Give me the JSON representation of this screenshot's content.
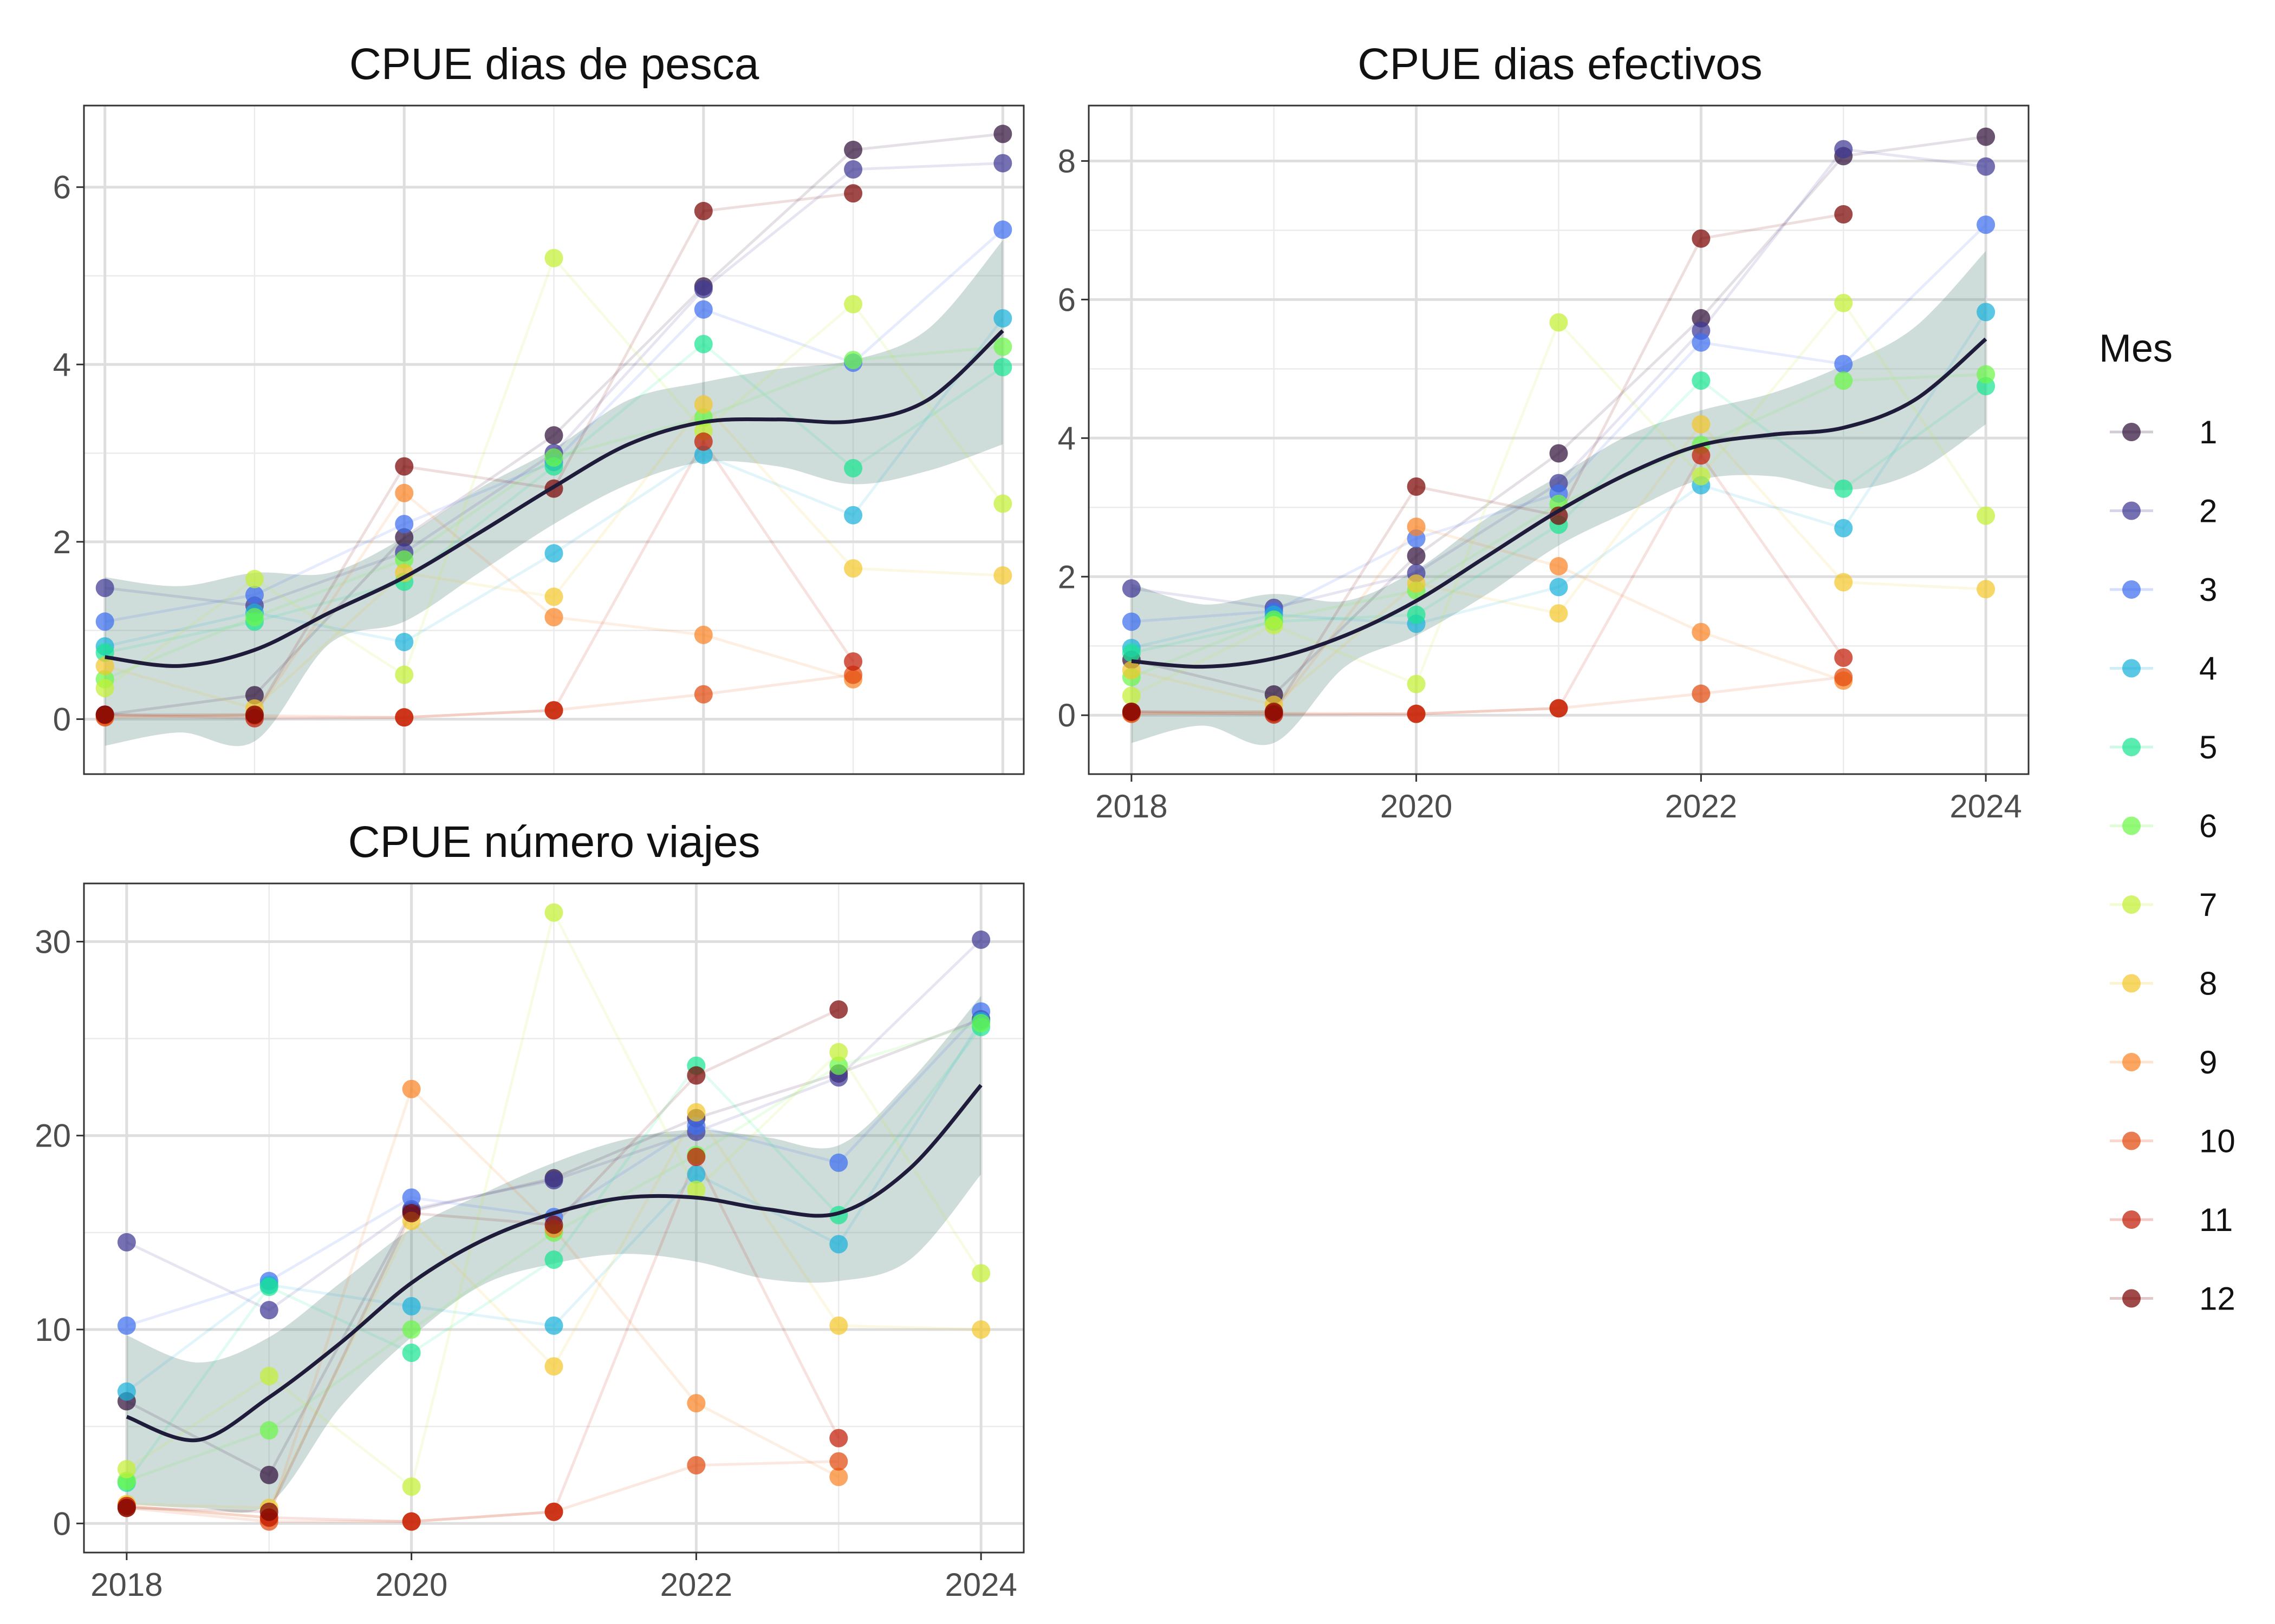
{
  "palette": [
    "#30123B",
    "#3E3994",
    "#3E6FF0",
    "#1AB1D9",
    "#1BE592",
    "#6CF74A",
    "#C3F034",
    "#F2C82D",
    "#F98325",
    "#E24A0E",
    "#C21C05",
    "#7A0403"
  ],
  "smooth_color": "#1F1B3A",
  "ribbon_color": "#5E8C86",
  "legend": {
    "title": "Mes",
    "items": [
      "1",
      "2",
      "3",
      "4",
      "5",
      "6",
      "7",
      "8",
      "9",
      "10",
      "11",
      "12"
    ]
  },
  "chart_data": [
    {
      "type": "scatter",
      "title": "CPUE dias de pesca",
      "x_ticks": [],
      "xlim": [
        2017.86,
        2024.14
      ],
      "ylim": [
        -0.62,
        6.92
      ],
      "y_ticks": [
        0,
        2,
        4,
        6
      ],
      "smooth": {
        "x": [
          2018,
          2018.5,
          2019,
          2019.5,
          2020,
          2020.5,
          2021,
          2021.5,
          2022,
          2022.5,
          2023,
          2023.5,
          2024
        ],
        "y": [
          0.7,
          0.6,
          0.78,
          1.2,
          1.6,
          2.1,
          2.62,
          3.1,
          3.35,
          3.38,
          3.36,
          3.6,
          4.38
        ],
        "lower": [
          -0.3,
          -0.15,
          -0.25,
          0.85,
          1.1,
          1.65,
          2.2,
          2.65,
          2.9,
          2.85,
          2.65,
          2.8,
          3.1
        ],
        "upper": [
          1.6,
          1.5,
          1.65,
          1.65,
          2.05,
          2.6,
          3.05,
          3.6,
          3.8,
          3.95,
          4.05,
          4.4,
          5.4
        ]
      },
      "series": [
        {
          "name": "1",
          "values": [
            0.05,
            0.27,
            2.05,
            3.2,
            4.88,
            6.42,
            6.6
          ]
        },
        {
          "name": "2",
          "values": [
            1.48,
            1.28,
            1.88,
            3.0,
            4.85,
            6.2,
            6.27
          ]
        },
        {
          "name": "3",
          "values": [
            1.1,
            1.4,
            2.2,
            2.9,
            4.62,
            4.02,
            5.52
          ]
        },
        {
          "name": "4",
          "values": [
            0.82,
            1.2,
            0.87,
            1.87,
            2.98,
            2.3,
            4.52
          ]
        },
        {
          "name": "5",
          "values": [
            0.75,
            1.1,
            1.55,
            2.85,
            4.23,
            2.83,
            3.97
          ]
        },
        {
          "name": "6",
          "values": [
            0.45,
            1.15,
            1.8,
            2.95,
            3.4,
            4.05,
            4.2
          ]
        },
        {
          "name": "7",
          "values": [
            0.35,
            1.58,
            0.5,
            5.2,
            3.25,
            4.68,
            2.43
          ]
        },
        {
          "name": "8",
          "values": [
            0.6,
            0.12,
            1.65,
            1.38,
            3.55,
            1.7,
            1.62
          ]
        },
        {
          "name": "9",
          "values": [
            0.03,
            0.05,
            2.55,
            1.15,
            0.95,
            0.45,
            null
          ]
        },
        {
          "name": "10",
          "values": [
            0.02,
            0.04,
            0.02,
            0.1,
            0.28,
            0.5,
            null
          ]
        },
        {
          "name": "11",
          "values": [
            0.05,
            0.01,
            0.02,
            0.1,
            3.13,
            0.65,
            null
          ]
        },
        {
          "name": "12",
          "values": [
            0.05,
            0.05,
            2.85,
            2.6,
            5.73,
            5.93,
            null
          ]
        }
      ]
    },
    {
      "type": "scatter",
      "title": "CPUE dias efectivos",
      "x_ticks": [
        "2018",
        "2020",
        "2022",
        "2024"
      ],
      "xlim": [
        2017.7,
        2024.3
      ],
      "ylim": [
        -0.85,
        8.8
      ],
      "y_ticks": [
        0,
        2,
        4,
        6,
        8
      ],
      "smooth": {
        "x": [
          2018,
          2018.5,
          2019,
          2019.5,
          2020,
          2020.5,
          2021,
          2021.5,
          2022,
          2022.5,
          2023,
          2023.5,
          2024
        ],
        "y": [
          0.78,
          0.7,
          0.82,
          1.15,
          1.65,
          2.3,
          2.95,
          3.5,
          3.9,
          4.05,
          4.15,
          4.55,
          5.43
        ],
        "lower": [
          -0.4,
          -0.15,
          -0.4,
          0.7,
          1.15,
          1.75,
          2.45,
          2.95,
          3.4,
          3.45,
          3.25,
          3.5,
          4.2
        ],
        "upper": [
          1.9,
          1.6,
          1.75,
          1.65,
          2.1,
          2.85,
          3.45,
          4.05,
          4.4,
          4.65,
          5.05,
          5.6,
          6.7
        ]
      },
      "series": [
        {
          "name": "1",
          "values": [
            0.8,
            0.3,
            2.3,
            3.78,
            5.73,
            8.07,
            8.35
          ]
        },
        {
          "name": "2",
          "values": [
            1.83,
            1.55,
            2.05,
            3.35,
            5.55,
            8.17,
            7.92
          ]
        },
        {
          "name": "3",
          "values": [
            1.35,
            1.5,
            2.55,
            3.2,
            5.38,
            5.07,
            7.08
          ]
        },
        {
          "name": "4",
          "values": [
            0.97,
            1.45,
            1.32,
            1.85,
            3.32,
            2.7,
            5.82
          ]
        },
        {
          "name": "5",
          "values": [
            0.9,
            1.35,
            1.45,
            2.75,
            4.83,
            3.27,
            4.75
          ]
        },
        {
          "name": "6",
          "values": [
            0.55,
            1.38,
            1.8,
            3.05,
            3.9,
            4.83,
            4.92
          ]
        },
        {
          "name": "7",
          "values": [
            0.28,
            1.3,
            0.45,
            5.67,
            3.45,
            5.95,
            2.88
          ]
        },
        {
          "name": "8",
          "values": [
            0.65,
            0.15,
            1.9,
            1.47,
            4.2,
            1.92,
            1.82
          ]
        },
        {
          "name": "9",
          "values": [
            0.03,
            0.05,
            2.72,
            2.15,
            1.2,
            0.5,
            null
          ]
        },
        {
          "name": "10",
          "values": [
            0.02,
            0.03,
            0.02,
            0.1,
            0.31,
            0.55,
            null
          ]
        },
        {
          "name": "11",
          "values": [
            0.05,
            0.01,
            0.02,
            0.1,
            3.75,
            0.83,
            null
          ]
        },
        {
          "name": "12",
          "values": [
            0.05,
            0.05,
            3.3,
            2.88,
            6.88,
            7.23,
            null
          ]
        }
      ]
    },
    {
      "type": "scatter",
      "title": "CPUE número viajes",
      "x_ticks": [
        "2018",
        "2020",
        "2022",
        "2024"
      ],
      "xlim": [
        2017.7,
        2024.3
      ],
      "ylim": [
        -1.5,
        33.0
      ],
      "y_ticks": [
        0,
        10,
        20,
        30
      ],
      "smooth": {
        "x": [
          2018,
          2018.5,
          2019,
          2019.5,
          2020,
          2020.5,
          2021,
          2021.5,
          2022,
          2022.5,
          2023,
          2023.5,
          2024
        ],
        "y": [
          5.5,
          4.3,
          6.5,
          9.3,
          12.4,
          14.6,
          16.0,
          16.8,
          16.8,
          16.2,
          16.0,
          18.3,
          22.6
        ],
        "lower": [
          1.0,
          0.8,
          1.0,
          6.0,
          9.6,
          12.3,
          13.4,
          13.9,
          13.5,
          12.6,
          12.5,
          13.6,
          18.0
        ],
        "upper": [
          9.7,
          8.3,
          9.6,
          12.4,
          15.2,
          17.0,
          18.6,
          19.8,
          20.3,
          19.9,
          19.5,
          22.8,
          27.2
        ]
      },
      "series": [
        {
          "name": "1",
          "values": [
            6.3,
            2.5,
            16.1,
            17.8,
            20.9,
            23.2,
            26.0
          ]
        },
        {
          "name": "2",
          "values": [
            14.5,
            11.0,
            16.2,
            17.7,
            20.2,
            23.0,
            30.1
          ]
        },
        {
          "name": "3",
          "values": [
            10.2,
            12.5,
            16.8,
            15.8,
            20.5,
            18.6,
            26.4
          ]
        },
        {
          "name": "4",
          "values": [
            6.8,
            12.3,
            11.2,
            10.2,
            18.0,
            14.4,
            25.9
          ]
        },
        {
          "name": "5",
          "values": [
            2.1,
            12.2,
            8.8,
            13.6,
            23.6,
            15.9,
            25.6
          ]
        },
        {
          "name": "6",
          "values": [
            2.2,
            4.8,
            10.0,
            15.0,
            19.0,
            23.6,
            25.8
          ]
        },
        {
          "name": "7",
          "values": [
            2.8,
            7.6,
            1.9,
            31.5,
            17.2,
            24.3,
            12.9
          ]
        },
        {
          "name": "8",
          "values": [
            1.0,
            0.8,
            15.6,
            8.1,
            21.2,
            10.2,
            10.0
          ]
        },
        {
          "name": "9",
          "values": [
            0.9,
            0.3,
            22.4,
            15.2,
            6.2,
            2.4,
            null
          ]
        },
        {
          "name": "10",
          "values": [
            0.8,
            0.1,
            0.1,
            0.6,
            3.0,
            3.2,
            null
          ]
        },
        {
          "name": "11",
          "values": [
            0.9,
            0.3,
            0.1,
            0.6,
            18.9,
            4.4,
            null
          ]
        },
        {
          "name": "12",
          "values": [
            0.8,
            0.6,
            16.0,
            15.4,
            23.1,
            26.5,
            null
          ]
        }
      ]
    }
  ]
}
